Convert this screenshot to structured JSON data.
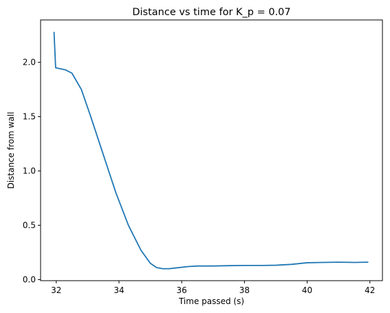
{
  "chart_data": {
    "type": "line",
    "title": "Distance vs time for K_p = 0.07",
    "xlabel": "Time passed (s)",
    "ylabel": "Distance from wall",
    "xlim": [
      31.5,
      42.4
    ],
    "ylim": [
      -0.01,
      2.39
    ],
    "xticks": [
      32,
      34,
      36,
      38,
      40,
      42
    ],
    "yticks": [
      0.0,
      0.5,
      1.0,
      1.5,
      2.0
    ],
    "xtick_labels": [
      "32",
      "34",
      "36",
      "38",
      "40",
      "42"
    ],
    "ytick_labels": [
      "0.0",
      "0.5",
      "1.0",
      "1.5",
      "2.0"
    ],
    "grid": false,
    "line_color": "#1f77b4",
    "series": [
      {
        "x": [
          31.93,
          31.93,
          31.98,
          32.3,
          32.5,
          32.8,
          33.1,
          33.5,
          33.9,
          34.3,
          34.7,
          35.0,
          35.2,
          35.4,
          35.6,
          35.9,
          36.2,
          36.5,
          37.0,
          37.5,
          38.0,
          38.5,
          39.0,
          39.5,
          40.0,
          40.5,
          41.0,
          41.5,
          41.95
        ],
        "y": [
          2.28,
          2.27,
          1.95,
          1.93,
          1.9,
          1.75,
          1.5,
          1.15,
          0.8,
          0.5,
          0.27,
          0.15,
          0.11,
          0.1,
          0.1,
          0.11,
          0.12,
          0.125,
          0.125,
          0.128,
          0.13,
          0.13,
          0.132,
          0.14,
          0.155,
          0.158,
          0.16,
          0.158,
          0.16
        ]
      }
    ]
  }
}
